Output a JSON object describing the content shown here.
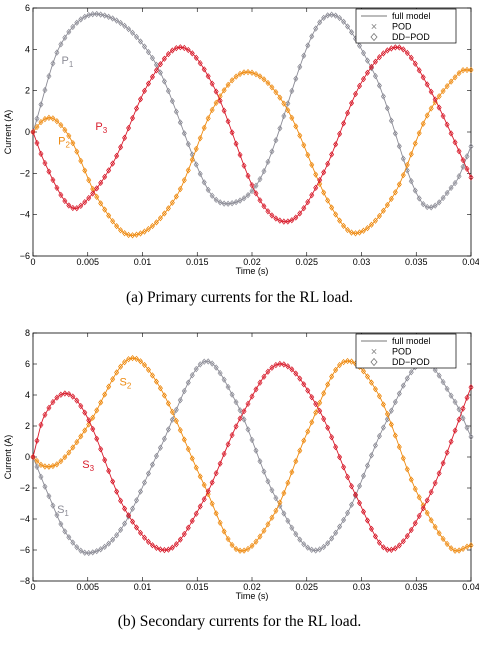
{
  "colors": {
    "P1": "#8c8c96",
    "P2": "#ee8a10",
    "P3": "#d81c2c"
  },
  "panels": [
    {
      "caption": "(a) Primary currents for the RL load.",
      "legend": [
        "full model",
        "POD",
        "DD−POD"
      ],
      "chart_data": {
        "type": "line",
        "xlabel": "Time (s)",
        "ylabel": "Current (A)",
        "xlim": [
          0,
          0.04
        ],
        "ylim": [
          -6,
          6
        ],
        "xticks": [
          0,
          0.005,
          0.01,
          0.015,
          0.02,
          0.025,
          0.03,
          0.035,
          0.04
        ],
        "xtick_labels": [
          "0",
          "0.005",
          "0.01",
          "0.015",
          "0.02",
          "0.025",
          "0.03",
          "0.035",
          "0.04"
        ],
        "yticks": [
          -6,
          -4,
          -2,
          0,
          2,
          4,
          6
        ],
        "ytick_labels": [
          "−6",
          "−4",
          "−2",
          "0",
          "2",
          "4",
          "6"
        ],
        "grid": false,
        "legend_position": "top-right",
        "series": [
          {
            "name": "full model",
            "style": "line"
          },
          {
            "name": "POD",
            "style": "x-marker"
          },
          {
            "name": "DD−POD",
            "style": "diamond-marker"
          }
        ],
        "phases": [
          {
            "label": "P1",
            "color_key": "P1",
            "label_pos": [
              0.0026,
              3.3
            ],
            "points": [
              [
                0,
                0
              ],
              [
                0.0025,
                4.2
              ],
              [
                0.006,
                5.7
              ],
              [
                0.011,
                3.5
              ],
              [
                0.016,
                -2.8
              ],
              [
                0.0185,
                -3.4
              ],
              [
                0.021,
                -2.0
              ],
              [
                0.0265,
                5.5
              ],
              [
                0.031,
                3.0
              ],
              [
                0.0355,
                -3.4
              ],
              [
                0.0385,
                -2.5
              ],
              [
                0.04,
                -0.7
              ]
            ]
          },
          {
            "label": "P2",
            "color_key": "P2",
            "label_pos": [
              0.0023,
              -0.6
            ],
            "points": [
              [
                0,
                0
              ],
              [
                0.001,
                0.6
              ],
              [
                0.002,
                0.6
              ],
              [
                0.0035,
                -0.4
              ],
              [
                0.006,
                -3.3
              ],
              [
                0.009,
                -5.0
              ],
              [
                0.013,
                -3.2
              ],
              [
                0.0165,
                1.2
              ],
              [
                0.0195,
                2.9
              ],
              [
                0.023,
                1.3
              ],
              [
                0.027,
                -3.4
              ],
              [
                0.0295,
                -4.9
              ],
              [
                0.033,
                -3.0
              ],
              [
                0.036,
                0.8
              ],
              [
                0.039,
                2.9
              ],
              [
                0.04,
                3.0
              ]
            ]
          },
          {
            "label": "P3",
            "color_key": "P3",
            "label_pos": [
              0.0057,
              0.1
            ],
            "points": [
              [
                0,
                0
              ],
              [
                0.001,
                -1.4
              ],
              [
                0.003,
                -3.4
              ],
              [
                0.0043,
                -3.6
              ],
              [
                0.0073,
                -1.5
              ],
              [
                0.0105,
                2.3
              ],
              [
                0.0135,
                4.1
              ],
              [
                0.0165,
                2.2
              ],
              [
                0.0205,
                -3.1
              ],
              [
                0.0235,
                -4.3
              ],
              [
                0.0265,
                -2.0
              ],
              [
                0.03,
                2.4
              ],
              [
                0.0333,
                4.1
              ],
              [
                0.036,
                2.3
              ],
              [
                0.04,
                -2.2
              ]
            ]
          }
        ]
      }
    },
    {
      "caption": "(b) Secondary currents for the RL load.",
      "legend": [
        "full model",
        "POD",
        "DD−POD"
      ],
      "chart_data": {
        "type": "line",
        "xlabel": "Time (s)",
        "ylabel": "Current (A)",
        "xlim": [
          0,
          0.04
        ],
        "ylim": [
          -8,
          8
        ],
        "xticks": [
          0,
          0.005,
          0.01,
          0.015,
          0.02,
          0.025,
          0.03,
          0.035,
          0.04
        ],
        "xtick_labels": [
          "0",
          "0.005",
          "0.01",
          "0.015",
          "0.02",
          "0.025",
          "0.03",
          "0.035",
          "0.04"
        ],
        "yticks": [
          -8,
          -6,
          -4,
          -2,
          0,
          2,
          4,
          6,
          8
        ],
        "ytick_labels": [
          "−8",
          "−6",
          "−4",
          "−2",
          "0",
          "2",
          "4",
          "6",
          "8"
        ],
        "grid": false,
        "legend_position": "top-right",
        "series": [
          {
            "name": "full model",
            "style": "line"
          },
          {
            "name": "POD",
            "style": "x-marker"
          },
          {
            "name": "DD−POD",
            "style": "diamond-marker"
          }
        ],
        "phases": [
          {
            "label": "S1",
            "color_key": "P1",
            "label_pos": [
              0.0022,
              -3.6
            ],
            "points": [
              [
                0,
                0
              ],
              [
                0.0015,
                -2.6
              ],
              [
                0.003,
                -4.9
              ],
              [
                0.005,
                -6.2
              ],
              [
                0.008,
                -4.7
              ],
              [
                0.0115,
                0.4
              ],
              [
                0.0155,
                6.1
              ],
              [
                0.0185,
                3.6
              ],
              [
                0.022,
                -2.4
              ],
              [
                0.0255,
                -6.0
              ],
              [
                0.0285,
                -3.9
              ],
              [
                0.032,
                1.9
              ],
              [
                0.0355,
                6.1
              ],
              [
                0.0385,
                3.6
              ],
              [
                0.04,
                1.3
              ]
            ]
          },
          {
            "label": "S2",
            "color_key": "P2",
            "label_pos": [
              0.0079,
              4.6
            ],
            "points": [
              [
                0,
                0
              ],
              [
                0.001,
                -0.6
              ],
              [
                0.0025,
                -0.3
              ],
              [
                0.005,
                2.0
              ],
              [
                0.0087,
                6.3
              ],
              [
                0.0115,
                4.6
              ],
              [
                0.0155,
                -1.6
              ],
              [
                0.0187,
                -6.0
              ],
              [
                0.022,
                -3.7
              ],
              [
                0.025,
                1.5
              ],
              [
                0.0283,
                6.1
              ],
              [
                0.0315,
                4.1
              ],
              [
                0.035,
                -2.2
              ],
              [
                0.0382,
                -5.9
              ],
              [
                0.04,
                -5.7
              ]
            ]
          },
          {
            "label": "S3",
            "color_key": "P3",
            "label_pos": [
              0.0045,
              -0.7
            ],
            "points": [
              [
                0,
                0
              ],
              [
                0.001,
                2.6
              ],
              [
                0.003,
                4.1
              ],
              [
                0.005,
                2.5
              ],
              [
                0.0085,
                -3.5
              ],
              [
                0.0122,
                -6.0
              ],
              [
                0.0155,
                -2.9
              ],
              [
                0.019,
                2.6
              ],
              [
                0.0225,
                6.0
              ],
              [
                0.026,
                3.2
              ],
              [
                0.0295,
                -2.5
              ],
              [
                0.0325,
                -6.0
              ],
              [
                0.036,
                -2.8
              ],
              [
                0.04,
                4.5
              ]
            ]
          }
        ]
      }
    }
  ]
}
